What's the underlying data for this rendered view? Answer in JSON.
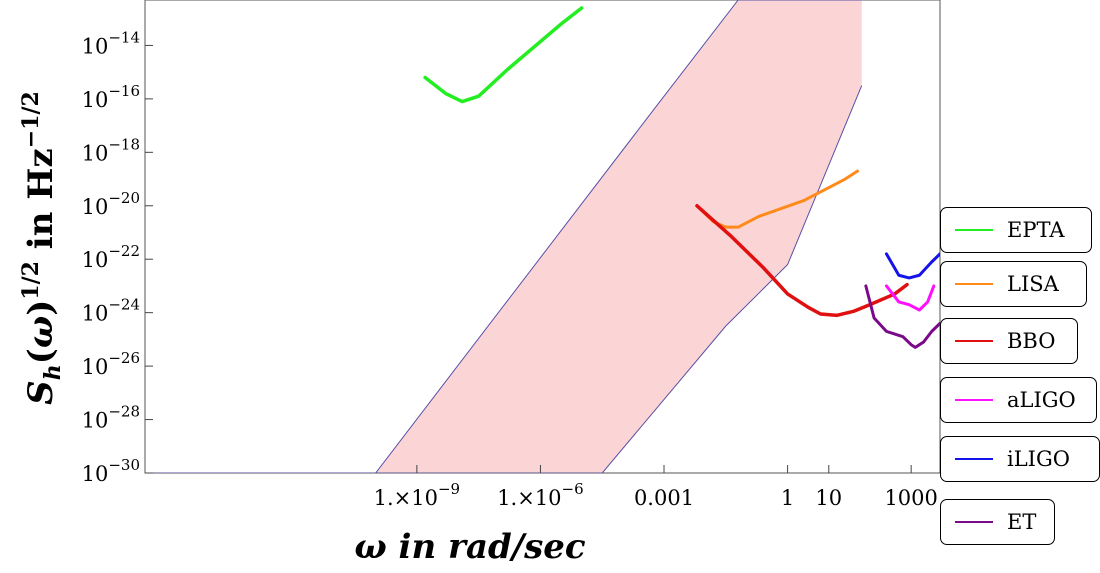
{
  "chart_data": {
    "type": "line",
    "title": "",
    "xlabel": "ω in rad/sec",
    "ylabel": "S_h(ω)^1/2 in Hz^-1/2",
    "x_scale": "log",
    "y_scale": "log",
    "xlim_log10": [
      -15.6,
      3.7
    ],
    "ylim_log10": [
      -30,
      -12.3
    ],
    "x_ticks": [
      {
        "log10": -9,
        "mantissa": "1.",
        "exp": "-9"
      },
      {
        "log10": -6,
        "mantissa": "1.",
        "exp": "-6"
      },
      {
        "log10": -3,
        "label": "0.001"
      },
      {
        "log10": 0,
        "label": "1"
      },
      {
        "log10": 1,
        "label": "10"
      },
      {
        "log10": 3,
        "label": "1000"
      }
    ],
    "y_ticks": [
      {
        "log10": -14,
        "exp": "-14"
      },
      {
        "log10": -16,
        "exp": "-16"
      },
      {
        "log10": -18,
        "exp": "-18"
      },
      {
        "log10": -20,
        "exp": "-20"
      },
      {
        "log10": -22,
        "exp": "-22"
      },
      {
        "log10": -24,
        "exp": "-24"
      },
      {
        "log10": -26,
        "exp": "-26"
      },
      {
        "log10": -28,
        "exp": "-28"
      },
      {
        "log10": -30,
        "exp": "-30"
      }
    ],
    "region": {
      "fill": "#fbd5d5",
      "stroke": "#5a4fa8",
      "lower_edge": [
        [
          -10.0,
          -30.0
        ],
        [
          -4.5,
          -30.0
        ],
        [
          -1.5,
          -24.5
        ],
        [
          0.0,
          -22.2
        ],
        [
          1.8,
          -15.5
        ]
      ],
      "upper_edge": [
        [
          -15.6,
          -30.0
        ],
        [
          -10.0,
          -30.0
        ],
        [
          -3.2,
          -16.3
        ],
        [
          -1.2,
          -12.3
        ],
        [
          1.8,
          -12.3
        ]
      ]
    },
    "series": [
      {
        "name": "EPTA",
        "color": "#22ee22",
        "width": 3.5,
        "points": [
          [
            -8.8,
            -15.2
          ],
          [
            -8.3,
            -15.8
          ],
          [
            -7.9,
            -16.1
          ],
          [
            -7.5,
            -15.9
          ],
          [
            -6.8,
            -14.9
          ],
          [
            -5.5,
            -13.2
          ],
          [
            -5.0,
            -12.6
          ]
        ]
      },
      {
        "name": "LISA",
        "color": "#ff8a1c",
        "width": 3,
        "points": [
          [
            -2.2,
            -20.0
          ],
          [
            -1.8,
            -20.6
          ],
          [
            -1.5,
            -20.8
          ],
          [
            -1.2,
            -20.8
          ],
          [
            -0.7,
            -20.4
          ],
          [
            0.4,
            -19.8
          ],
          [
            1.4,
            -19.0
          ],
          [
            1.7,
            -18.7
          ]
        ]
      },
      {
        "name": "BBO",
        "color": "#e01010",
        "width": 3.5,
        "points": [
          [
            -2.2,
            -20.0
          ],
          [
            -1.4,
            -21.1
          ],
          [
            -0.6,
            -22.3
          ],
          [
            0.0,
            -23.3
          ],
          [
            0.5,
            -23.8
          ],
          [
            0.8,
            -24.05
          ],
          [
            1.2,
            -24.1
          ],
          [
            1.6,
            -23.95
          ],
          [
            2.0,
            -23.7
          ],
          [
            2.6,
            -23.3
          ],
          [
            2.9,
            -22.95
          ]
        ]
      },
      {
        "name": "aLIGO",
        "color": "#ff10ff",
        "width": 3,
        "points": [
          [
            2.4,
            -23.0
          ],
          [
            2.7,
            -23.6
          ],
          [
            2.95,
            -23.7
          ],
          [
            3.2,
            -23.9
          ],
          [
            3.4,
            -23.6
          ],
          [
            3.55,
            -23.0
          ]
        ]
      },
      {
        "name": "iLIGO",
        "color": "#1414e8",
        "width": 3,
        "points": [
          [
            2.4,
            -21.8
          ],
          [
            2.7,
            -22.6
          ],
          [
            2.95,
            -22.7
          ],
          [
            3.2,
            -22.6
          ],
          [
            3.5,
            -22.1
          ],
          [
            3.7,
            -21.8
          ]
        ]
      },
      {
        "name": "ET",
        "color": "#7a0a8a",
        "width": 3,
        "points": [
          [
            1.9,
            -23.0
          ],
          [
            2.1,
            -24.2
          ],
          [
            2.4,
            -24.7
          ],
          [
            2.8,
            -24.9
          ],
          [
            3.0,
            -25.2
          ],
          [
            3.1,
            -25.3
          ],
          [
            3.3,
            -25.1
          ],
          [
            3.5,
            -24.7
          ],
          [
            3.7,
            -24.4
          ]
        ]
      }
    ],
    "legend_placement": "right"
  }
}
